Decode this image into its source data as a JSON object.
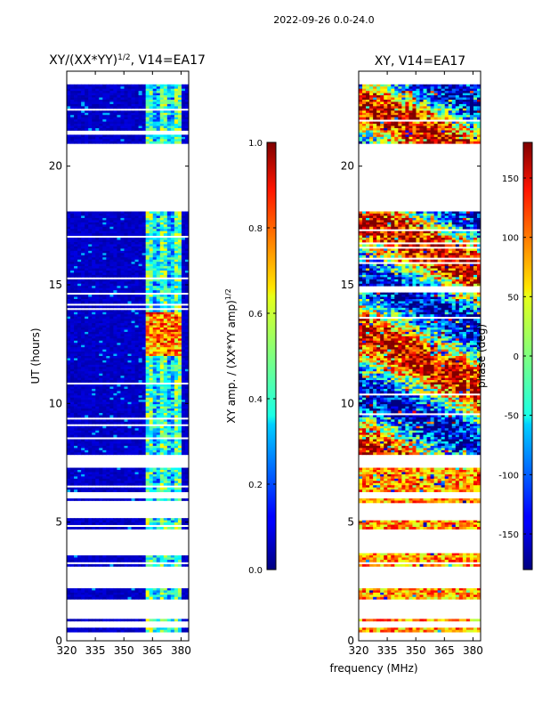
{
  "figure_title": "2022-09-26 0.0-24.0",
  "chart_data": [
    {
      "type": "heatmap",
      "title": "XY/(XX*YY)",
      "title_superscript": "1/2",
      "title_suffix": ", V14=EA17",
      "xlabel": "",
      "ylabel": "UT (hours)",
      "xlim": [
        320,
        384
      ],
      "ylim": [
        0,
        24
      ],
      "xticks": [
        320,
        335,
        350,
        365,
        380
      ],
      "yticks": [
        0,
        5,
        10,
        15,
        20
      ],
      "data_bands": [
        [
          0.4,
          0.55
        ],
        [
          0.8,
          0.95
        ],
        [
          1.75,
          2.25
        ],
        [
          3.1,
          3.7
        ],
        [
          4.7,
          5.2
        ],
        [
          5.85,
          6.0
        ],
        [
          6.25,
          7.25
        ],
        [
          7.85,
          18.1
        ],
        [
          21.0,
          23.5
        ]
      ],
      "strong_region": {
        "x": [
          362,
          380
        ],
        "y": [
          12.0,
          13.8
        ],
        "value": 0.85
      },
      "colorbar": {
        "label": "XY amp. / (XX*YY amp)",
        "label_superscript": "1/2",
        "range": [
          0.0,
          1.0
        ],
        "ticks": [
          "0.0",
          "0.2",
          "0.4",
          "0.6",
          "0.8",
          "1.0"
        ]
      }
    },
    {
      "type": "heatmap",
      "title": "XY, V14=EA17",
      "xlabel": "frequency (MHz)",
      "ylabel": "",
      "xlim": [
        320,
        384
      ],
      "ylim": [
        0,
        24
      ],
      "xticks": [
        320,
        335,
        350,
        365,
        380
      ],
      "yticks": [
        0,
        5,
        10,
        15,
        20
      ],
      "data_bands": [
        [
          0.4,
          0.55
        ],
        [
          0.8,
          0.95
        ],
        [
          1.75,
          2.25
        ],
        [
          3.1,
          3.7
        ],
        [
          4.7,
          5.2
        ],
        [
          5.85,
          6.0
        ],
        [
          6.25,
          7.25
        ],
        [
          7.85,
          18.1
        ],
        [
          21.0,
          23.5
        ]
      ],
      "colorbar": {
        "label": "phase (deg)",
        "range": [
          -180,
          180
        ],
        "ticks": [
          "-150",
          "-100",
          "-50",
          "0",
          "50",
          "100",
          "150"
        ]
      }
    }
  ]
}
